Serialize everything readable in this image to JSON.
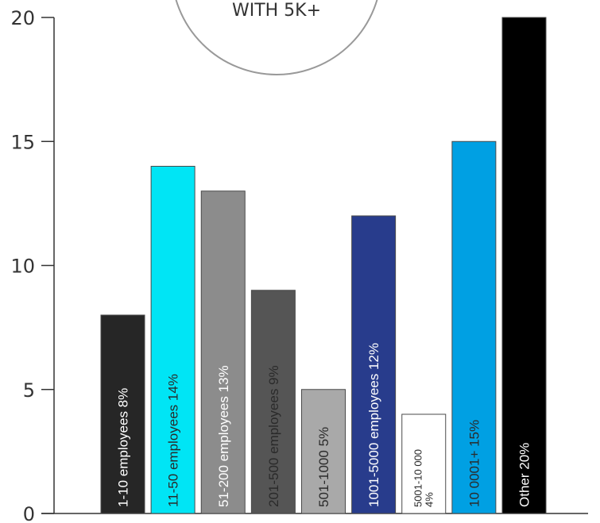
{
  "badge": {
    "text": "WITH 5K+"
  },
  "chart_data": {
    "type": "bar",
    "categories": [
      "1-10 employees 8%",
      "11-50 employees 14%",
      "51-200 employees 13%",
      "201-500 employees 9%",
      "501-1000 5%",
      "1001-5000 employees 12%",
      "5001-10 000 4%",
      "10 0001+ 15%",
      "Other 20%"
    ],
    "values": [
      8,
      14,
      13,
      9,
      5,
      12,
      4,
      15,
      20
    ],
    "colors": [
      "#262626",
      "#00e5f5",
      "#8c8c8c",
      "#555555",
      "#a9a9a9",
      "#283c8c",
      "#ffffff",
      "#00a0e3",
      "#000000"
    ],
    "label_colors": [
      "#ffffff",
      "#2a2a2a",
      "#ffffff",
      "#2a2a2a",
      "#2a2a2a",
      "#ffffff",
      "#2a2a2a",
      "#2a2a2a",
      "#ffffff"
    ],
    "ylim": [
      0,
      20
    ],
    "yticks": [
      0,
      5,
      10,
      15,
      20
    ],
    "xlabel": "",
    "ylabel": "",
    "title": ""
  }
}
